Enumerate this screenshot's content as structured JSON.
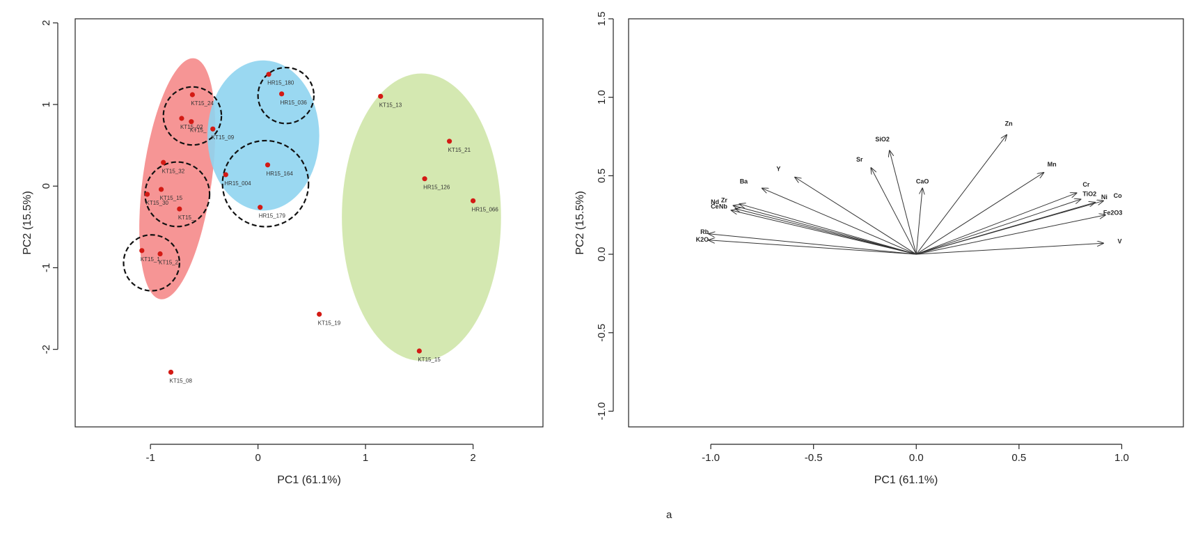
{
  "panel_label": "a",
  "colors": {
    "point": "#d31a14",
    "group_red": "#f58a8a",
    "group_blue": "#8fd4f0",
    "group_green": "#cfe6a8",
    "ink": "#222222"
  },
  "chart_data": [
    {
      "type": "scatter",
      "title": "",
      "xlabel": "PC1 (61.1%)",
      "ylabel": "PC2 (15.5%)",
      "xlim": [
        -1.7,
        2.65
      ],
      "ylim": [
        -2.95,
        2.05
      ],
      "xticks": [
        -1,
        0,
        1,
        2
      ],
      "yticks": [
        -2,
        -1,
        0,
        1,
        2
      ],
      "grid": false,
      "points": [
        {
          "label": "KT15_24",
          "x": -0.61,
          "y": 1.12
        },
        {
          "label": "KT15_02",
          "x": -0.71,
          "y": 0.83
        },
        {
          "label": "KT15_",
          "x": -0.62,
          "y": 0.79
        },
        {
          "label": "KT15_09",
          "x": -0.42,
          "y": 0.7
        },
        {
          "label": "KT15_32",
          "x": -0.88,
          "y": 0.29
        },
        {
          "label": "KT15_15",
          "x": -0.9,
          "y": -0.04
        },
        {
          "label": "KT15_30",
          "x": -1.03,
          "y": -0.1
        },
        {
          "label": "KT15_",
          "x": -0.73,
          "y": -0.28
        },
        {
          "label": "KT15_1",
          "x": -1.08,
          "y": -0.79
        },
        {
          "label": "KT15_2",
          "x": -0.91,
          "y": -0.83
        },
        {
          "label": "KT15_08",
          "x": -0.81,
          "y": -2.28
        },
        {
          "label": "HR15_180",
          "x": 0.1,
          "y": 1.37
        },
        {
          "label": "HR15_036",
          "x": 0.22,
          "y": 1.13
        },
        {
          "label": "HR15_164",
          "x": 0.09,
          "y": 0.26
        },
        {
          "label": "HR15_004",
          "x": -0.3,
          "y": 0.14
        },
        {
          "label": "HR15_179",
          "x": 0.02,
          "y": -0.26
        },
        {
          "label": "KT15_13",
          "x": 1.14,
          "y": 1.1
        },
        {
          "label": "KT15_21",
          "x": 1.78,
          "y": 0.55
        },
        {
          "label": "HR15_126",
          "x": 1.55,
          "y": 0.09
        },
        {
          "label": "HR15_066",
          "x": 2.0,
          "y": -0.18
        },
        {
          "label": "KT15_19",
          "x": 0.57,
          "y": -1.57
        },
        {
          "label": "KT15_15",
          "x": 1.5,
          "y": -2.02
        }
      ],
      "groups": [
        {
          "color": "red",
          "cx": -0.75,
          "cy": 0.09,
          "rx": 0.32,
          "ry": 1.49,
          "rotation_deg": 8
        },
        {
          "color": "blue",
          "cx": 0.05,
          "cy": 0.62,
          "rx": 0.52,
          "ry": 0.92,
          "rotation_deg": 0
        },
        {
          "color": "green",
          "cx": 1.52,
          "cy": -0.38,
          "rx": 0.74,
          "ry": 1.76,
          "rotation_deg": 0
        }
      ],
      "highlight_circles": [
        {
          "cx": -0.61,
          "cy": 0.86,
          "r": 0.27
        },
        {
          "cx": -0.75,
          "cy": -0.1,
          "r": 0.3
        },
        {
          "cx": -0.99,
          "cy": -0.94,
          "r": 0.26
        },
        {
          "cx": 0.07,
          "cy": 0.03,
          "r": 0.4
        },
        {
          "cx": 0.26,
          "cy": 1.11,
          "r": 0.26
        }
      ]
    },
    {
      "type": "biplot-loadings",
      "title": "",
      "xlabel": "PC1 (61.1%)",
      "ylabel": "PC2 (15.5%)",
      "xlim": [
        -1.4,
        1.3
      ],
      "ylim": [
        -1.1,
        1.5
      ],
      "xticks": [
        -1.0,
        -0.5,
        0.0,
        0.5,
        1.0
      ],
      "xtick_labels": [
        "-1.0",
        "-0.5",
        "0.0",
        "0.5",
        "1.0"
      ],
      "yticks": [
        -1.0,
        -0.5,
        0.0,
        0.5,
        1.0,
        1.5
      ],
      "ytick_labels": [
        "-1.0",
        "-0.5",
        "0.0",
        "0.5",
        "1.0",
        "1.5"
      ],
      "grid": false,
      "origin": [
        0,
        0
      ],
      "loadings": [
        {
          "name": "Zn",
          "x": 0.44,
          "y": 0.76
        },
        {
          "name": "SiO2",
          "x": -0.13,
          "y": 0.66
        },
        {
          "name": "Sr",
          "x": -0.22,
          "y": 0.55
        },
        {
          "name": "CaO",
          "x": 0.03,
          "y": 0.42
        },
        {
          "name": "Mn",
          "x": 0.62,
          "y": 0.52
        },
        {
          "name": "Y",
          "x": -0.59,
          "y": 0.49
        },
        {
          "name": "Ba",
          "x": -0.75,
          "y": 0.42
        },
        {
          "name": "Cr",
          "x": 0.78,
          "y": 0.39
        },
        {
          "name": "TiO2",
          "x": 0.8,
          "y": 0.35
        },
        {
          "name": "Ni",
          "x": 0.87,
          "y": 0.33
        },
        {
          "name": "Co",
          "x": 0.91,
          "y": 0.34
        },
        {
          "name": "Fe2O3",
          "x": 0.92,
          "y": 0.25
        },
        {
          "name": "V",
          "x": 0.91,
          "y": 0.07
        },
        {
          "name": "Nd",
          "x": -0.89,
          "y": 0.31
        },
        {
          "name": "Zr",
          "x": -0.86,
          "y": 0.32
        },
        {
          "name": "Ce",
          "x": -0.9,
          "y": 0.28
        },
        {
          "name": "Nb",
          "x": -0.88,
          "y": 0.29
        },
        {
          "name": "Rb",
          "x": -1.01,
          "y": 0.13
        },
        {
          "name": "K2O",
          "x": -1.01,
          "y": 0.09
        }
      ],
      "label_text": [
        {
          "text": "Zn",
          "x": 0.45,
          "y": 0.82,
          "anchor": "middle"
        },
        {
          "text": "SiO2",
          "x": -0.13,
          "y": 0.72,
          "anchor": "end"
        },
        {
          "text": "Sr",
          "x": -0.26,
          "y": 0.59,
          "anchor": "end"
        },
        {
          "text": "CaO",
          "x": 0.03,
          "y": 0.45,
          "anchor": "middle"
        },
        {
          "text": "Mn",
          "x": 0.66,
          "y": 0.56,
          "anchor": "middle"
        },
        {
          "text": "Y",
          "x": -0.66,
          "y": 0.53,
          "anchor": "end"
        },
        {
          "text": "Ba",
          "x": -0.82,
          "y": 0.45,
          "anchor": "end"
        },
        {
          "text": "Cr",
          "x": 0.81,
          "y": 0.43,
          "anchor": "start"
        },
        {
          "text": "TiO2",
          "x": 0.81,
          "y": 0.37,
          "anchor": "start"
        },
        {
          "text": "Ni",
          "x": 0.9,
          "y": 0.35,
          "anchor": "start"
        },
        {
          "text": "Co",
          "x": 0.96,
          "y": 0.36,
          "anchor": "start"
        },
        {
          "text": "Fe2O3",
          "x": 0.91,
          "y": 0.25,
          "anchor": "start"
        },
        {
          "text": "V",
          "x": 0.98,
          "y": 0.07,
          "anchor": "start"
        },
        {
          "text": "Nd",
          "x": -1.0,
          "y": 0.32,
          "anchor": "start"
        },
        {
          "text": "Zr",
          "x": -0.95,
          "y": 0.33,
          "anchor": "start"
        },
        {
          "text": "Ce",
          "x": -1.0,
          "y": 0.29,
          "anchor": "start"
        },
        {
          "text": "Nb",
          "x": -0.96,
          "y": 0.29,
          "anchor": "start"
        },
        {
          "text": "Rb",
          "x": -1.01,
          "y": 0.13,
          "anchor": "end"
        },
        {
          "text": "K2O",
          "x": -1.01,
          "y": 0.08,
          "anchor": "end"
        }
      ]
    }
  ]
}
